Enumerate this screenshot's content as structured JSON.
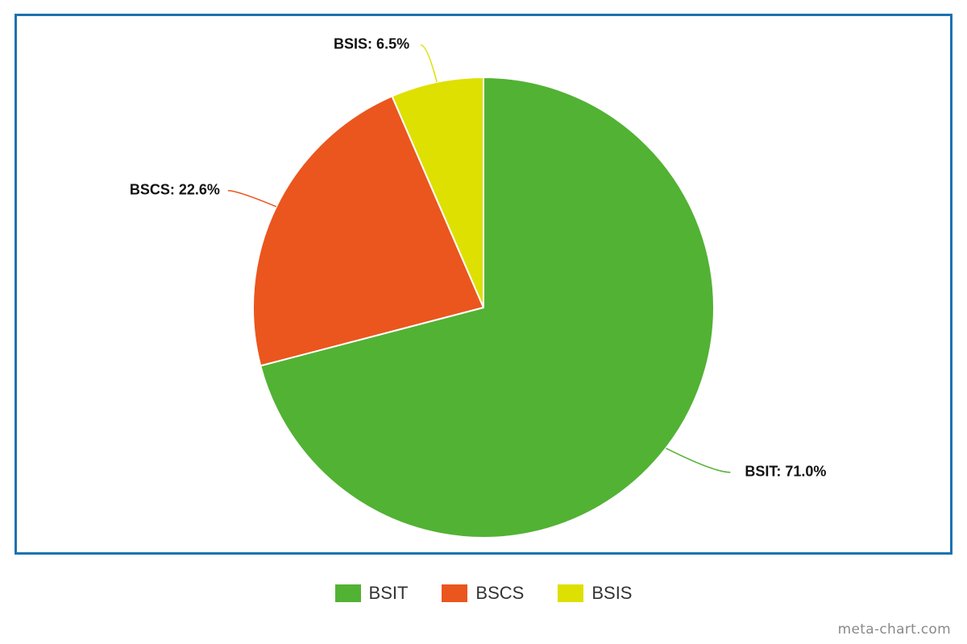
{
  "chart_data": {
    "type": "pie",
    "slices": [
      {
        "name": "BSIT",
        "value": 71.0,
        "label": "BSIT: 71.0%",
        "color": "#52b234"
      },
      {
        "name": "BSCS",
        "value": 22.6,
        "label": "BSCS: 22.6%",
        "color": "#ea561e"
      },
      {
        "name": "BSIS",
        "value": 6.5,
        "label": "BSIS: 6.5%",
        "color": "#dde000"
      }
    ],
    "legend": [
      "BSIT",
      "BSCS",
      "BSIS"
    ],
    "legend_position": "bottom-center",
    "start_angle": "12 o'clock",
    "direction": "clockwise",
    "frame_color": "#1a73b0"
  },
  "watermark": "meta-chart.com"
}
